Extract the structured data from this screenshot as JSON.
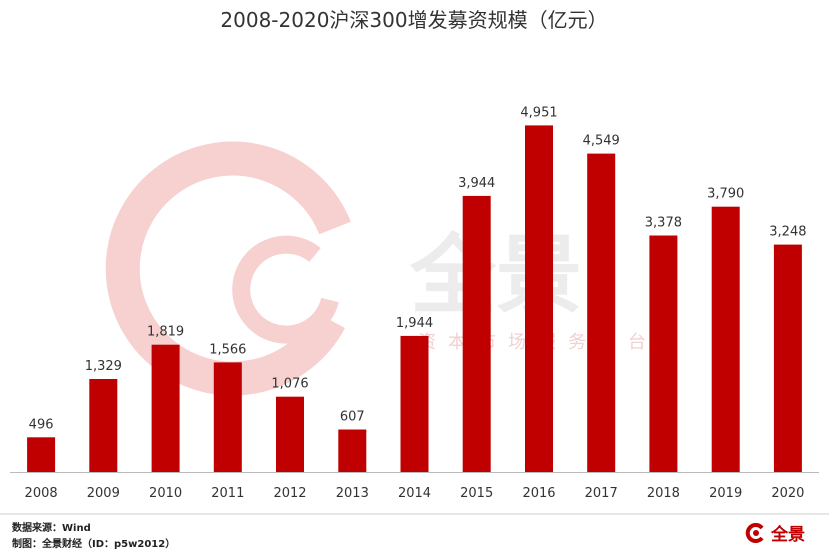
{
  "chart_data": {
    "type": "bar",
    "title": "2008-2020沪深300增发募资规模（亿元）",
    "categories": [
      "2008",
      "2009",
      "2010",
      "2011",
      "2012",
      "2013",
      "2014",
      "2015",
      "2016",
      "2017",
      "2018",
      "2019",
      "2020"
    ],
    "values": [
      496,
      1329,
      1819,
      1566,
      1076,
      607,
      1944,
      3944,
      4951,
      4549,
      3378,
      3790,
      3248
    ],
    "value_labels": [
      "496",
      "1,329",
      "1,819",
      "1,566",
      "1,076",
      "607",
      "1,944",
      "3,944",
      "4,951",
      "4,549",
      "3,378",
      "3,790",
      "3,248"
    ],
    "ylim": [
      0,
      5000
    ],
    "grid": false,
    "bar_color": "#c00000"
  },
  "watermark": {
    "brand": "全景",
    "slogan": "资本市场服务平台",
    "color": "#f4c6c6"
  },
  "footer": {
    "source": "数据来源：Wind",
    "maker": "制图：全景财经（ID：p5w2012）"
  },
  "brand": {
    "name": "全景",
    "color": "#c00000"
  }
}
